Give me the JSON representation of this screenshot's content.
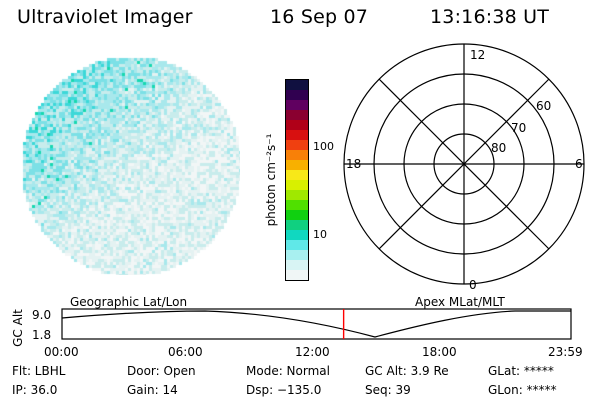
{
  "header": {
    "instrument": "Ultraviolet Imager",
    "date": "16 Sep 07",
    "time": "13:16:38 UT"
  },
  "colorbar": {
    "unit_label": "photon cm⁻²s⁻¹",
    "ticks": [
      "100",
      "10"
    ],
    "colors": [
      "#101040",
      "#300050",
      "#600060",
      "#8a0030",
      "#b00018",
      "#d81010",
      "#f04010",
      "#f88008",
      "#f8b000",
      "#f8e818",
      "#d8f000",
      "#a0e800",
      "#50e000",
      "#10d010",
      "#10d080",
      "#10d8c0",
      "#60e8e8",
      "#a8f0f0",
      "#d8f4f4",
      "#f0f6f6"
    ]
  },
  "polar_plot": {
    "mlt_labels": {
      "top": "12",
      "left": "18",
      "right": "6",
      "bottom": "0"
    },
    "lat_labels": [
      "60",
      "70",
      "80"
    ]
  },
  "timeline": {
    "left_title": "Geographic Lat/Lon",
    "right_title": "Apex MLat/MLT",
    "y_axis_label": "GC Alt",
    "y_ticks": [
      "9.0",
      "1.8"
    ],
    "x_ticks": [
      "00:00",
      "06:00",
      "12:00",
      "18:00",
      "23:59"
    ],
    "current_time_fraction": 0.5533,
    "marker_color": "#ff0000"
  },
  "info": {
    "flt": "Flt: LBHL",
    "ip": "IP: 36.0",
    "door": "Door: Open",
    "gain": "Gain: 14",
    "mode": "Mode: Normal",
    "dsp": "Dsp: −135.0",
    "gc_alt": "GC Alt: 3.9 Re",
    "seq": "Seq: 39",
    "glat": "GLat: *****",
    "glon": "GLon: *****"
  }
}
